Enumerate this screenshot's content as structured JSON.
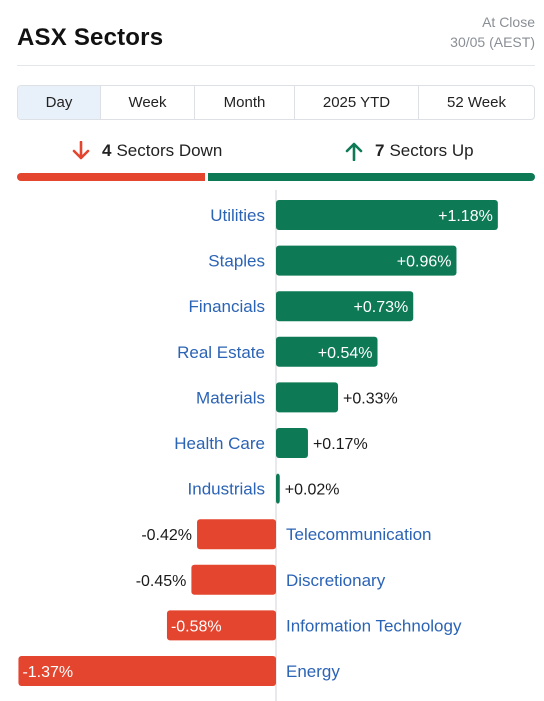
{
  "header": {
    "title": "ASX Sectors",
    "status_line1": "At Close",
    "status_line2": "30/05 (AEST)"
  },
  "tabs": [
    {
      "label": "Day",
      "active": true
    },
    {
      "label": "Week",
      "active": false
    },
    {
      "label": "Month",
      "active": false
    },
    {
      "label": "2025 YTD",
      "active": false
    },
    {
      "label": "52 Week",
      "active": false
    }
  ],
  "summary": {
    "down_count": "4",
    "down_text": "Sectors Down",
    "up_count": "7",
    "up_text": "Sectors Up"
  },
  "colors": {
    "up": "#0e7a55",
    "down": "#e3452f",
    "label": "#2b63b5"
  },
  "chart_data": {
    "type": "bar",
    "orientation": "horizontal",
    "categories": [
      "Utilities",
      "Staples",
      "Financials",
      "Real Estate",
      "Materials",
      "Health Care",
      "Industrials",
      "Telecommunication",
      "Discretionary",
      "Information Technology",
      "Energy"
    ],
    "values": [
      1.18,
      0.96,
      0.73,
      0.54,
      0.33,
      0.17,
      0.02,
      -0.42,
      -0.45,
      -0.58,
      -1.37
    ],
    "value_labels": [
      "+1.18%",
      "+0.96%",
      "+0.73%",
      "+0.54%",
      "+0.33%",
      "+0.17%",
      "+0.02%",
      "-0.42%",
      "-0.45%",
      "-0.58%",
      "-1.37%"
    ],
    "unit": "%"
  }
}
